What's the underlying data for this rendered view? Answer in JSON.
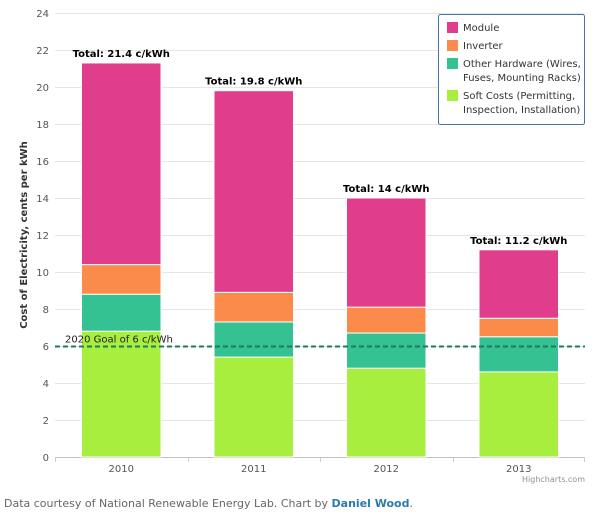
{
  "chart_data": {
    "type": "bar",
    "stacked": true,
    "categories": [
      "2010",
      "2011",
      "2012",
      "2013"
    ],
    "series": [
      {
        "name": "Soft Costs (Permitting, Inspection, Installation)",
        "legend_lines": [
          "Soft Costs (Permitting,",
          "Inspection, Installation)"
        ],
        "color": "#a8ee3f",
        "values": [
          6.8,
          5.4,
          4.8,
          4.6
        ]
      },
      {
        "name": "Other Hardware (Wires, Fuses, Mounting Racks)",
        "legend_lines": [
          "Other Hardware (Wires,",
          "Fuses, Mounting Racks)"
        ],
        "color": "#35c293",
        "values": [
          2.0,
          1.9,
          1.9,
          1.9
        ]
      },
      {
        "name": "Inverter",
        "legend_lines": [
          "Inverter"
        ],
        "color": "#fa8b4a",
        "values": [
          1.6,
          1.6,
          1.4,
          1.0
        ]
      },
      {
        "name": "Module",
        "legend_lines": [
          "Module"
        ],
        "color": "#e03d8c",
        "values": [
          10.9,
          10.9,
          5.9,
          3.7
        ]
      }
    ],
    "totals": [
      "Total: 21.4 c/kWh",
      "Total: 19.8 c/kWh",
      "Total: 14 c/kWh",
      "Total: 11.2 c/kWh"
    ],
    "ylabel": "Cost of Electricity, cents per kWh",
    "xlabel": "",
    "ylim": [
      0,
      24
    ],
    "yticks": [
      0,
      2,
      4,
      6,
      8,
      10,
      12,
      14,
      16,
      18,
      20,
      22,
      24
    ],
    "grid": true,
    "legend_placement": "top-right",
    "plot_line": {
      "value": 6,
      "label": "2020 Goal of 6 c/kWh",
      "color": "#1f7a5c",
      "style": "dashed"
    },
    "credits": "Highcharts.com"
  },
  "footer": {
    "text": "Data courtesy of National Renewable Energy Lab. Chart by ",
    "link": "Daniel Wood",
    "suffix": "."
  }
}
